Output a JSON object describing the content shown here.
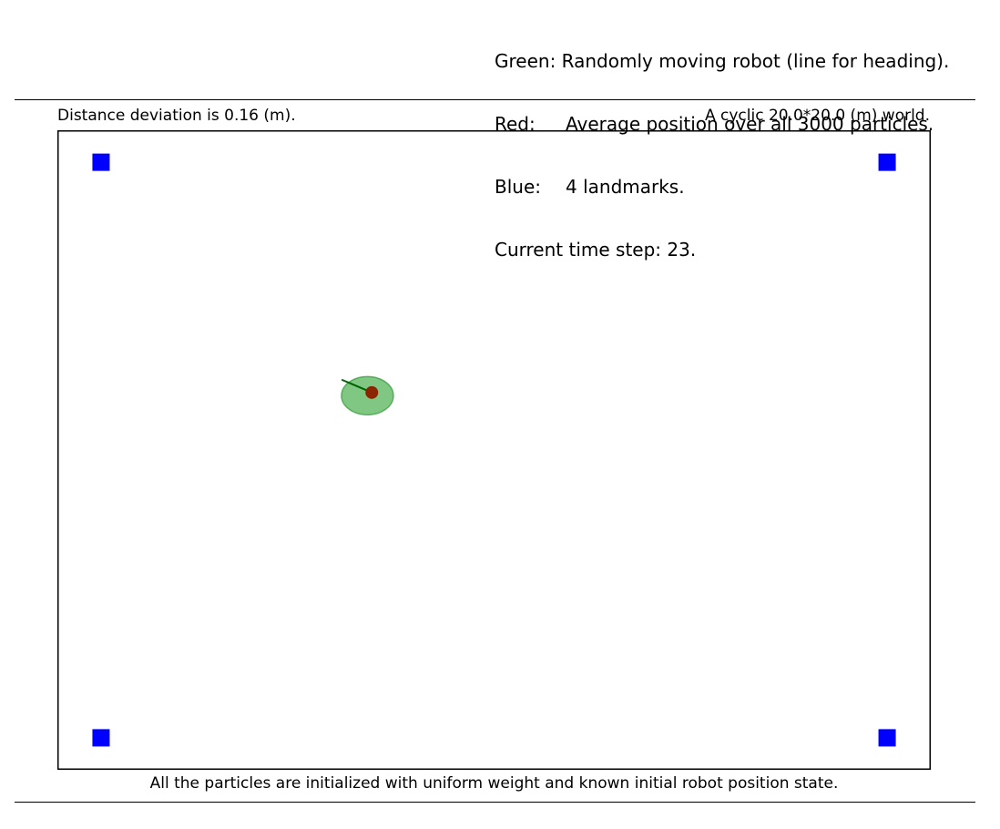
{
  "legend": {
    "green_key": "Green:",
    "green_text": "Randomly moving robot (line for heading).",
    "red_key": "Red:",
    "red_text": "Average position over all 3000 particles.",
    "blue_key": "Blue:",
    "blue_text": "4 landmarks.",
    "time_step": "Current time step: 23."
  },
  "info": {
    "deviation": "Distance deviation is 0.16 (m).",
    "world": "A cyclic 20.0*20.0 (m) world."
  },
  "footer": "All the particles are initialized with uniform weight and known initial robot position state.",
  "colors": {
    "robot": "#4caf50",
    "robot_stroke": "#2e9a34",
    "heading": "#006400",
    "particle_mean": "#8b2500",
    "landmark": "#0000ff",
    "frame": "#000000"
  },
  "world": {
    "size_m": [
      20.0,
      20.0
    ],
    "landmarks": [
      {
        "x": 1.0,
        "y": 19.0
      },
      {
        "x": 19.0,
        "y": 19.0
      },
      {
        "x": 1.0,
        "y": 1.0
      },
      {
        "x": 19.0,
        "y": 1.0
      }
    ],
    "robot": {
      "x": 7.1,
      "y": 11.7,
      "heading_deg": 157
    },
    "particle_mean": {
      "x": 7.2,
      "y": 11.8
    }
  }
}
